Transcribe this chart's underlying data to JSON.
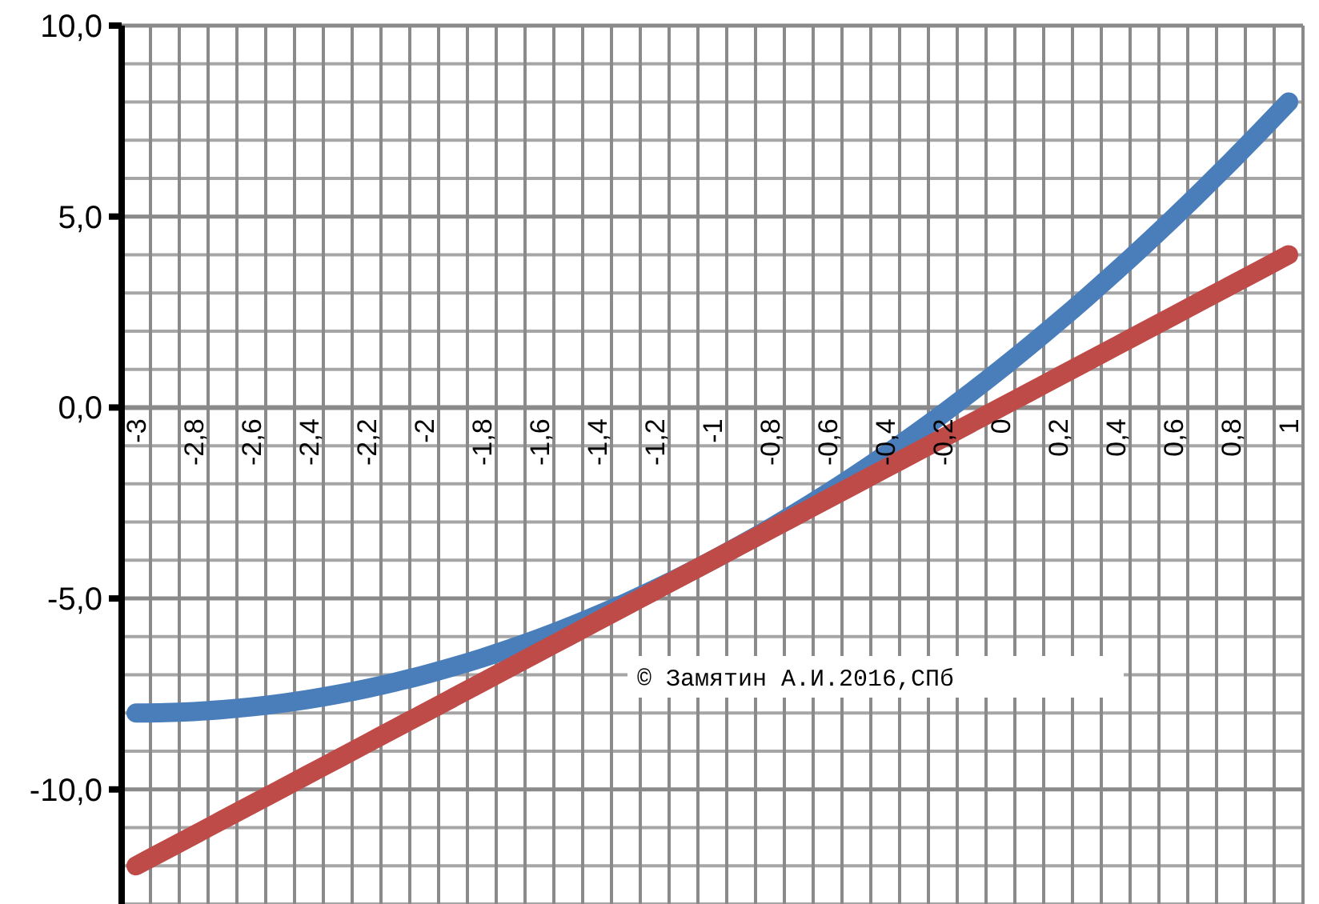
{
  "chart_data": {
    "type": "line",
    "categories": [
      "-3",
      null,
      "-2,8",
      null,
      "-2,6",
      null,
      "-2,4",
      null,
      "-2,2",
      null,
      "-2",
      null,
      "-1,8",
      null,
      "-1,6",
      null,
      "-1,4",
      null,
      "-1,2",
      null,
      "-1",
      null,
      "-0,8",
      null,
      "-0,6",
      null,
      "-0,4",
      null,
      "-0,2",
      null,
      "0",
      null,
      "0,2",
      null,
      "0,4",
      null,
      "0,6",
      null,
      "0,8",
      null,
      "1"
    ],
    "series": [
      {
        "color": "#4a7ebb",
        "values": [
          -8,
          -7.99,
          -7.96,
          -7.91,
          -7.84,
          -7.75,
          -7.64,
          -7.51,
          -7.36,
          -7.19,
          -7,
          -6.79,
          -6.56,
          -6.31,
          -6.04,
          -5.75,
          -5.44,
          -5.11,
          -4.76,
          -4.39,
          -4,
          -3.59,
          -3.16,
          -2.71,
          -2.24,
          -1.75,
          -1.24,
          -0.71,
          -0.16,
          0.41,
          1,
          1.61,
          2.24,
          2.89,
          3.56,
          4.25,
          4.96,
          5.69,
          6.44,
          7.21,
          8
        ]
      },
      {
        "color": "#be4b48",
        "values": [
          -12,
          -11.6,
          -11.2,
          -10.8,
          -10.4,
          -10,
          -9.6,
          -9.2,
          -8.8,
          -8.4,
          -8,
          -7.6,
          -7.2,
          -6.8,
          -6.4,
          -6,
          -5.6,
          -5.2,
          -4.8,
          -4.4,
          -4,
          -3.6,
          -3.2,
          -2.8,
          -2.4,
          -2,
          -1.6,
          -1.2,
          -0.8,
          -0.4,
          0,
          0.4,
          0.8,
          1.2,
          1.6,
          2,
          2.4,
          2.8,
          3.2,
          3.6,
          4
        ]
      }
    ],
    "ylim": [
      -13,
      10
    ],
    "yticks": [
      {
        "value": -13,
        "label": null
      },
      {
        "value": -12,
        "label": null
      },
      {
        "value": -11,
        "label": null
      },
      {
        "value": -10,
        "label": "-10,0"
      },
      {
        "value": -9,
        "label": null
      },
      {
        "value": -8,
        "label": null
      },
      {
        "value": -7,
        "label": null
      },
      {
        "value": -6,
        "label": null
      },
      {
        "value": -5,
        "label": "-5,0"
      },
      {
        "value": -4,
        "label": null
      },
      {
        "value": -3,
        "label": null
      },
      {
        "value": -2,
        "label": null
      },
      {
        "value": -1,
        "label": null
      },
      {
        "value": 0,
        "label": "0,0"
      },
      {
        "value": 1,
        "label": null
      },
      {
        "value": 2,
        "label": null
      },
      {
        "value": 3,
        "label": null
      },
      {
        "value": 4,
        "label": null
      },
      {
        "value": 5,
        "label": "5,0"
      },
      {
        "value": 6,
        "label": null
      },
      {
        "value": 7,
        "label": null
      },
      {
        "value": 8,
        "label": null
      },
      {
        "value": 9,
        "label": null
      },
      {
        "value": 10,
        "label": "10,0"
      }
    ],
    "grid": true,
    "line_style": "solid",
    "annotations": [
      "© Замятин А.И.2016,СПб"
    ]
  }
}
